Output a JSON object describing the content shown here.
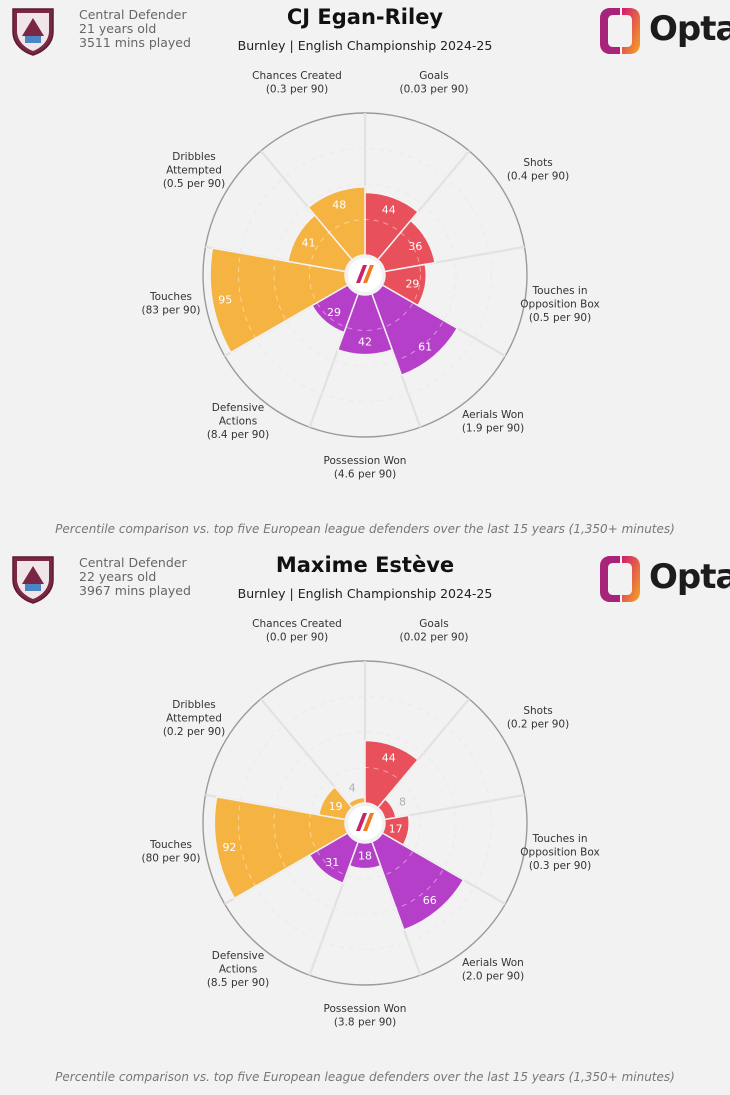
{
  "footnote": "Percentile comparison vs. top five European league defenders over the last 15 years (1,350+ minutes)",
  "logo_text": "Opta",
  "colors": {
    "attack": "#e8505b",
    "possession": "#f5b342",
    "defence": "#b53fc8",
    "grid": "#dddddd",
    "outer": "#9a9a9a",
    "crest": "#7a2645"
  },
  "chart_data": [
    {
      "type": "radial-bar",
      "title": "CJ Egan-Riley",
      "subtitle": "Burnley | English Championship 2024-25",
      "position": "Central Defender",
      "age": "21 years old",
      "minutes": "3511 mins played",
      "categories": [
        {
          "label": [
            "Goals"
          ],
          "value_text": "(0.03 per 90)",
          "percentile": 44,
          "group": "attack"
        },
        {
          "label": [
            "Shots"
          ],
          "value_text": "(0.4 per 90)",
          "percentile": 36,
          "group": "attack"
        },
        {
          "label": [
            "Touches in",
            "Opposition Box"
          ],
          "value_text": "(0.5 per 90)",
          "percentile": 29,
          "group": "attack"
        },
        {
          "label": [
            "Aerials Won"
          ],
          "value_text": "(1.9 per 90)",
          "percentile": 61,
          "group": "defence"
        },
        {
          "label": [
            "Possession Won"
          ],
          "value_text": "(4.6 per 90)",
          "percentile": 42,
          "group": "defence"
        },
        {
          "label": [
            "Defensive",
            "Actions"
          ],
          "value_text": "(8.4 per 90)",
          "percentile": 29,
          "group": "defence"
        },
        {
          "label": [
            "Touches"
          ],
          "value_text": "(83 per 90)",
          "percentile": 95,
          "group": "possession"
        },
        {
          "label": [
            "Dribbles",
            "Attempted"
          ],
          "value_text": "(0.5 per 90)",
          "percentile": 41,
          "group": "possession"
        },
        {
          "label": [
            "Chances Created"
          ],
          "value_text": "(0.3 per 90)",
          "percentile": 48,
          "group": "possession"
        }
      ]
    },
    {
      "type": "radial-bar",
      "title": "Maxime Estève",
      "subtitle": "Burnley | English Championship 2024-25",
      "position": "Central Defender",
      "age": "22 years old",
      "minutes": "3967 mins played",
      "categories": [
        {
          "label": [
            "Goals"
          ],
          "value_text": "(0.02 per 90)",
          "percentile": 44,
          "group": "attack"
        },
        {
          "label": [
            "Shots"
          ],
          "value_text": "(0.2 per 90)",
          "percentile": 8,
          "group": "attack"
        },
        {
          "label": [
            "Touches in",
            "Opposition Box"
          ],
          "value_text": "(0.3 per 90)",
          "percentile": 17,
          "group": "attack"
        },
        {
          "label": [
            "Aerials Won"
          ],
          "value_text": "(2.0 per 90)",
          "percentile": 66,
          "group": "defence"
        },
        {
          "label": [
            "Possession Won"
          ],
          "value_text": "(3.8 per 90)",
          "percentile": 18,
          "group": "defence"
        },
        {
          "label": [
            "Defensive",
            "Actions"
          ],
          "value_text": "(8.5 per 90)",
          "percentile": 31,
          "group": "defence"
        },
        {
          "label": [
            "Touches"
          ],
          "value_text": "(80 per 90)",
          "percentile": 92,
          "group": "possession"
        },
        {
          "label": [
            "Dribbles",
            "Attempted"
          ],
          "value_text": "(0.2 per 90)",
          "percentile": 19,
          "group": "possession"
        },
        {
          "label": [
            "Chances Created"
          ],
          "value_text": "(0.0 per 90)",
          "percentile": 4,
          "group": "possession"
        }
      ]
    }
  ]
}
